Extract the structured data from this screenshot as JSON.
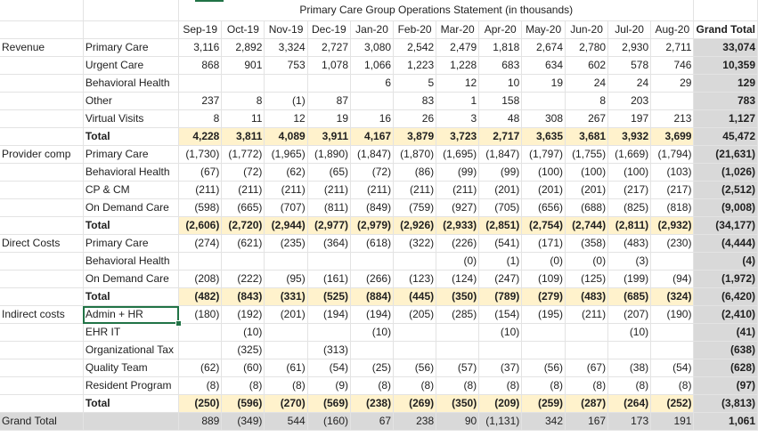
{
  "title": "Primary Care Group Operations Statement (in thousands)",
  "columns": [
    "Sep-19",
    "Oct-19",
    "Nov-19",
    "Dec-19",
    "Jan-20",
    "Feb-20",
    "Mar-20",
    "Apr-20",
    "May-20",
    "Jun-20",
    "Jul-20",
    "Aug-20"
  ],
  "grand_total_header": "Grand Total",
  "sections": [
    {
      "label": "Revenue",
      "rows": [
        {
          "label": "Primary Care",
          "values": [
            "3,116",
            "2,892",
            "3,324",
            "2,727",
            "3,080",
            "2,542",
            "2,479",
            "1,818",
            "2,674",
            "2,780",
            "2,930",
            "2,711"
          ],
          "gt": "33,074"
        },
        {
          "label": "Urgent Care",
          "values": [
            "868",
            "901",
            "753",
            "1,078",
            "1,066",
            "1,223",
            "1,228",
            "683",
            "634",
            "602",
            "578",
            "746"
          ],
          "gt": "10,359"
        },
        {
          "label": "Behavioral Health",
          "values": [
            "",
            "",
            "",
            "",
            "6",
            "5",
            "12",
            "10",
            "19",
            "24",
            "24",
            "29"
          ],
          "gt": "129"
        },
        {
          "label": "Other",
          "values": [
            "237",
            "8",
            "(1)",
            "87",
            "",
            "83",
            "1",
            "158",
            "",
            "8",
            "203",
            ""
          ],
          "gt": "783"
        },
        {
          "label": "Virtual Visits",
          "values": [
            "8",
            "11",
            "12",
            "19",
            "16",
            "26",
            "3",
            "48",
            "308",
            "267",
            "197",
            "213"
          ],
          "gt": "1,127"
        },
        {
          "label": "Total",
          "total": true,
          "values": [
            "4,228",
            "3,811",
            "4,089",
            "3,911",
            "4,167",
            "3,879",
            "3,723",
            "2,717",
            "3,635",
            "3,681",
            "3,932",
            "3,699"
          ],
          "gt": "45,472"
        }
      ]
    },
    {
      "label": "Provider comp",
      "rows": [
        {
          "label": "Primary Care",
          "values": [
            "(1,730)",
            "(1,772)",
            "(1,965)",
            "(1,890)",
            "(1,847)",
            "(1,870)",
            "(1,695)",
            "(1,847)",
            "(1,797)",
            "(1,755)",
            "(1,669)",
            "(1,794)"
          ],
          "gt": "(21,631)"
        },
        {
          "label": "Behavioral Health",
          "values": [
            "(67)",
            "(72)",
            "(62)",
            "(65)",
            "(72)",
            "(86)",
            "(99)",
            "(99)",
            "(100)",
            "(100)",
            "(100)",
            "(103)"
          ],
          "gt": "(1,026)"
        },
        {
          "label": "CP & CM",
          "values": [
            "(211)",
            "(211)",
            "(211)",
            "(211)",
            "(211)",
            "(211)",
            "(211)",
            "(201)",
            "(201)",
            "(201)",
            "(217)",
            "(217)"
          ],
          "gt": "(2,512)"
        },
        {
          "label": "On Demand Care",
          "values": [
            "(598)",
            "(665)",
            "(707)",
            "(811)",
            "(849)",
            "(759)",
            "(927)",
            "(705)",
            "(656)",
            "(688)",
            "(825)",
            "(818)"
          ],
          "gt": "(9,008)"
        },
        {
          "label": "Total",
          "total": true,
          "values": [
            "(2,606)",
            "(2,720)",
            "(2,944)",
            "(2,977)",
            "(2,979)",
            "(2,926)",
            "(2,933)",
            "(2,851)",
            "(2,754)",
            "(2,744)",
            "(2,811)",
            "(2,932)"
          ],
          "gt": "(34,177)"
        }
      ]
    },
    {
      "label": "Direct Costs",
      "rows": [
        {
          "label": "Primary Care",
          "values": [
            "(274)",
            "(621)",
            "(235)",
            "(364)",
            "(618)",
            "(322)",
            "(226)",
            "(541)",
            "(171)",
            "(358)",
            "(483)",
            "(230)"
          ],
          "gt": "(4,444)"
        },
        {
          "label": "Behavioral Health",
          "values": [
            "",
            "",
            "",
            "",
            "",
            "",
            "(0)",
            "(1)",
            "(0)",
            "(0)",
            "(3)",
            ""
          ],
          "gt": "(4)"
        },
        {
          "label": "On Demand Care",
          "values": [
            "(208)",
            "(222)",
            "(95)",
            "(161)",
            "(266)",
            "(123)",
            "(124)",
            "(247)",
            "(109)",
            "(125)",
            "(199)",
            "(94)"
          ],
          "gt": "(1,972)"
        },
        {
          "label": "Total",
          "total": true,
          "values": [
            "(482)",
            "(843)",
            "(331)",
            "(525)",
            "(884)",
            "(445)",
            "(350)",
            "(789)",
            "(279)",
            "(483)",
            "(685)",
            "(324)"
          ],
          "gt": "(6,420)"
        }
      ]
    },
    {
      "label": "Indirect costs",
      "rows": [
        {
          "label": "Admin + HR",
          "selected": true,
          "values": [
            "(180)",
            "(192)",
            "(201)",
            "(194)",
            "(194)",
            "(205)",
            "(285)",
            "(154)",
            "(195)",
            "(211)",
            "(207)",
            "(190)"
          ],
          "gt": "(2,410)"
        },
        {
          "label": "EHR IT",
          "values": [
            "",
            "(10)",
            "",
            "",
            "(10)",
            "",
            "",
            "(10)",
            "",
            "",
            "(10)",
            ""
          ],
          "gt": "(41)"
        },
        {
          "label": "Organizational Tax",
          "values": [
            "",
            "(325)",
            "",
            "(313)",
            "",
            "",
            "",
            "",
            "",
            "",
            "",
            ""
          ],
          "gt": "(638)"
        },
        {
          "label": "Quality Team",
          "values": [
            "(62)",
            "(60)",
            "(61)",
            "(54)",
            "(25)",
            "(56)",
            "(57)",
            "(37)",
            "(56)",
            "(67)",
            "(38)",
            "(54)"
          ],
          "gt": "(628)"
        },
        {
          "label": "Resident Program",
          "values": [
            "(8)",
            "(8)",
            "(8)",
            "(9)",
            "(8)",
            "(8)",
            "(8)",
            "(8)",
            "(8)",
            "(8)",
            "(8)",
            "(8)"
          ],
          "gt": "(97)"
        },
        {
          "label": "Total",
          "total": true,
          "values": [
            "(250)",
            "(596)",
            "(270)",
            "(569)",
            "(238)",
            "(269)",
            "(350)",
            "(209)",
            "(259)",
            "(287)",
            "(264)",
            "(252)"
          ],
          "gt": "(3,813)"
        }
      ]
    }
  ],
  "grand_total_row": {
    "label": "Grand Total",
    "values": [
      "889",
      "(349)",
      "544",
      "(160)",
      "67",
      "238",
      "90",
      "(1,131)",
      "342",
      "167",
      "173",
      "191"
    ],
    "gt": "1,061"
  }
}
